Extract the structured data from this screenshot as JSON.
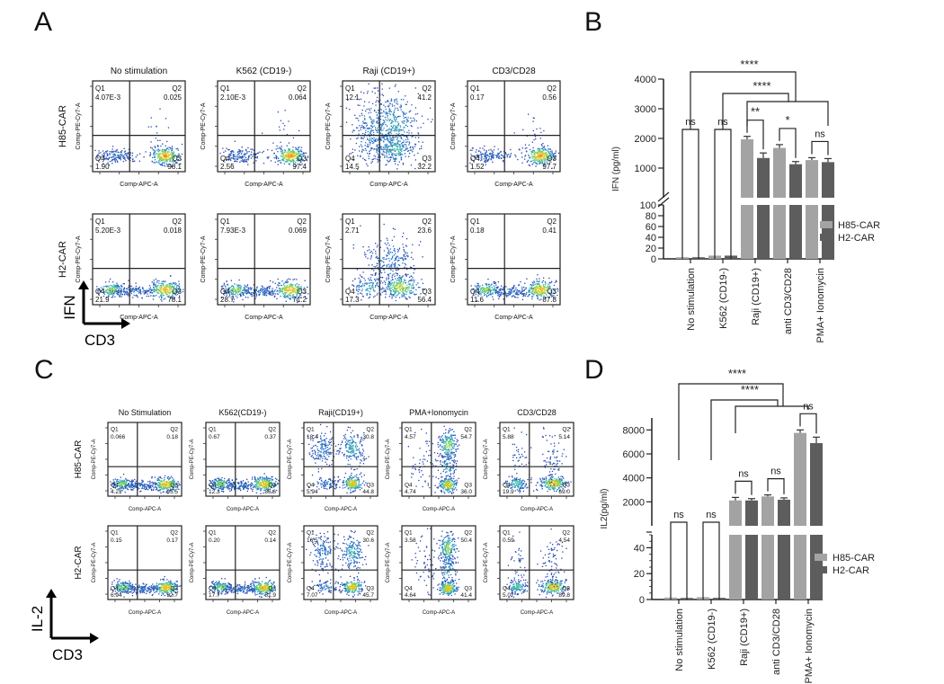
{
  "panels": {
    "A": {
      "letter": "A",
      "column_titles": [
        "No stimulation",
        "K562 (CD19-)",
        "Raji (CD19+)",
        "CD3/CD28"
      ],
      "row_labels": [
        "H85-CAR",
        "H2-CAR"
      ],
      "x_axis_label": "Comp-APC-A",
      "y_axis_label": "Comp-PE-Cy7-A",
      "corner_axes": {
        "y": "IFN",
        "x": "CD3"
      },
      "plots": [
        [
          {
            "Q1": "4.07E-3",
            "Q2": "0.025",
            "Q3": "98.1",
            "Q4": "1.90",
            "pattern": "q3-tight"
          },
          {
            "Q1": "2.10E-3",
            "Q2": "0.064",
            "Q3": "97.4",
            "Q4": "2.56",
            "pattern": "q3-tight"
          },
          {
            "Q1": "12.1",
            "Q2": "41.2",
            "Q3": "32.2",
            "Q4": "14.5",
            "pattern": "spread"
          },
          {
            "Q1": "0.17",
            "Q2": "0.56",
            "Q3": "97.7",
            "Q4": "1.52",
            "pattern": "q3-tight"
          }
        ],
        [
          {
            "Q1": "5.20E-3",
            "Q2": "0.018",
            "Q3": "78.1",
            "Q4": "21.9",
            "pattern": "band"
          },
          {
            "Q1": "7.93E-3",
            "Q2": "0.069",
            "Q3": "71.2",
            "Q4": "28.7",
            "pattern": "band"
          },
          {
            "Q1": "2.71",
            "Q2": "23.6",
            "Q3": "56.4",
            "Q4": "17.3",
            "pattern": "spread-low"
          },
          {
            "Q1": "0.18",
            "Q2": "0.41",
            "Q3": "87.8",
            "Q4": "11.6",
            "pattern": "band"
          }
        ]
      ]
    },
    "C": {
      "letter": "C",
      "column_titles": [
        "No Stimulation",
        "K562(CD19-)",
        "Raji(CD19+)",
        "PMA+Ionomycin",
        "CD3/CD28"
      ],
      "row_labels": [
        "H85-CAR",
        "H2-CAR"
      ],
      "x_axis_label": "Comp-APC-A",
      "y_axis_label": "Comp-PE-Cy7-A",
      "corner_axes": {
        "y": "IL-2",
        "x": "CD3"
      },
      "plots": [
        [
          {
            "Q1": "0.066",
            "Q2": "0.18",
            "Q3": "95.5",
            "Q4": "4.21",
            "pattern": "band"
          },
          {
            "Q1": "0.67",
            "Q2": "0.37",
            "Q3": "86.6",
            "Q4": "12.3",
            "pattern": "band"
          },
          {
            "Q1": "18.4",
            "Q2": "30.8",
            "Q3": "44.8",
            "Q4": "5.94",
            "pattern": "two-clusters"
          },
          {
            "Q1": "4.57",
            "Q2": "54.7",
            "Q3": "36.0",
            "Q4": "4.74",
            "pattern": "vertical"
          },
          {
            "Q1": "5.88",
            "Q2": "5.14",
            "Q3": "69.0",
            "Q4": "19.9",
            "pattern": "band-up"
          }
        ],
        [
          {
            "Q1": "0.15",
            "Q2": "0.17",
            "Q3": "92.7",
            "Q4": "6.94",
            "pattern": "band"
          },
          {
            "Q1": "0.20",
            "Q2": "0.14",
            "Q3": "81.9",
            "Q4": "17.7",
            "pattern": "band"
          },
          {
            "Q1": "16.5",
            "Q2": "30.6",
            "Q3": "45.7",
            "Q4": "7.07",
            "pattern": "two-clusters"
          },
          {
            "Q1": "3.58",
            "Q2": "50.4",
            "Q3": "41.4",
            "Q4": "4.64",
            "pattern": "vertical"
          },
          {
            "Q1": "0.59",
            "Q2": "4.54",
            "Q3": "89.8",
            "Q4": "5.07",
            "pattern": "band-up"
          }
        ]
      ]
    },
    "B": {
      "letter": "B"
    },
    "D": {
      "letter": "D"
    }
  },
  "chart_data": [
    {
      "id": "B",
      "type": "bar",
      "title": "",
      "ylabel": "IFN (pg/ml)",
      "xlabel": "",
      "categories": [
        "No stimulation",
        "K562 (CD19-)",
        "Raji (CD19+)",
        "anti CD3/CD28",
        "PMA+ Ionomycin"
      ],
      "series": [
        {
          "name": "H85-CAR",
          "color": "#a3a3a3",
          "values": [
            3,
            6,
            1970,
            1680,
            1270
          ],
          "errors": [
            1,
            1,
            100,
            110,
            80
          ]
        },
        {
          "name": "H2-CAR",
          "color": "#5d5d5d",
          "values": [
            3,
            6,
            1340,
            1130,
            1200
          ],
          "errors": [
            1,
            1,
            170,
            90,
            120
          ]
        }
      ],
      "y_axis_segments": [
        {
          "range": [
            0,
            100
          ],
          "ticks": [
            0,
            20,
            40,
            60,
            80,
            100
          ]
        },
        {
          "range": [
            0,
            4000
          ],
          "ticks": [
            1000,
            2000,
            3000,
            4000
          ],
          "tick_labels_from": 1000
        }
      ],
      "significance": [
        {
          "label": "ns",
          "groups": [
            0
          ],
          "type": "within"
        },
        {
          "label": "ns",
          "groups": [
            1
          ],
          "type": "within"
        },
        {
          "label": "**",
          "groups": [
            2
          ],
          "type": "within"
        },
        {
          "label": "*",
          "groups": [
            3
          ],
          "type": "within"
        },
        {
          "label": "ns",
          "groups": [
            4
          ],
          "type": "within"
        },
        {
          "label": "****",
          "from": 0,
          "to": "2-4",
          "type": "between"
        },
        {
          "label": "****",
          "from": 1,
          "to": "2-4",
          "type": "between"
        }
      ],
      "legend": {
        "entries": [
          "H85-CAR",
          "H2-CAR"
        ],
        "position": "right"
      }
    },
    {
      "id": "D",
      "type": "bar",
      "title": "",
      "ylabel": "IL2(pg/ml)",
      "xlabel": "",
      "categories": [
        "No stimulation",
        "K562 (CD19-)",
        "Raji (CD19+)",
        "anti CD3/CD28",
        "PMA+ Ionomycin"
      ],
      "series": [
        {
          "name": "H85-CAR",
          "color": "#a3a3a3",
          "values": [
            1.5,
            1.8,
            2120,
            2450,
            7750
          ],
          "errors": [
            0.5,
            0.5,
            250,
            130,
            250
          ]
        },
        {
          "name": "H2-CAR",
          "color": "#5d5d5d",
          "values": [
            1.2,
            1.3,
            2120,
            2180,
            6900
          ],
          "errors": [
            0.5,
            0.5,
            150,
            150,
            500
          ]
        }
      ],
      "y_axis_segments": [
        {
          "range": [
            0,
            50
          ],
          "ticks": [
            0,
            20,
            40
          ]
        },
        {
          "range": [
            0,
            9000
          ],
          "ticks": [
            2000,
            4000,
            6000,
            8000
          ]
        }
      ],
      "significance": [
        {
          "label": "ns",
          "groups": [
            0
          ],
          "type": "within"
        },
        {
          "label": "ns",
          "groups": [
            1
          ],
          "type": "within"
        },
        {
          "label": "ns",
          "groups": [
            2
          ],
          "type": "within"
        },
        {
          "label": "ns",
          "groups": [
            3
          ],
          "type": "within"
        },
        {
          "label": "ns",
          "groups": [
            4
          ],
          "type": "within"
        },
        {
          "label": "****",
          "from": 0,
          "to": "2-4",
          "type": "between"
        },
        {
          "label": "****",
          "from": 1,
          "to": "2-4",
          "type": "between"
        }
      ],
      "legend": {
        "entries": [
          "H85-CAR",
          "H2-CAR"
        ],
        "position": "right"
      }
    }
  ]
}
